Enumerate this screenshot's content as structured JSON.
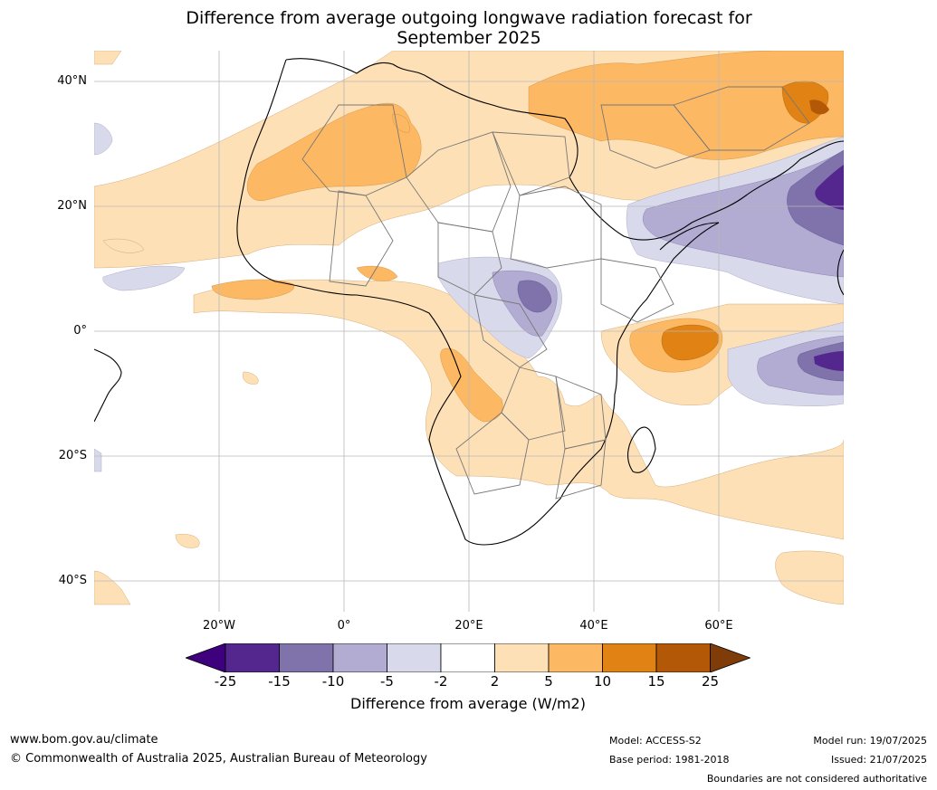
{
  "title_line1": "Difference from average outgoing longwave radiation forecast for",
  "title_line2": "September 2025",
  "lat_ticks": [
    "40°N",
    "20°N",
    "0°",
    "20°S",
    "40°S"
  ],
  "lon_ticks": [
    "20°W",
    "0°",
    "20°E",
    "40°E",
    "60°E"
  ],
  "colorbar": {
    "title": "Difference from average (W/m2)",
    "labels": [
      "-25",
      "-15",
      "-10",
      "-5",
      "-2",
      "2",
      "5",
      "10",
      "15",
      "25"
    ],
    "colors": [
      "#3f007d",
      "#54278f",
      "#8073ac",
      "#b2abd2",
      "#d8daeb",
      "#ffffff",
      "#fee0b6",
      "#fdb863",
      "#e08214",
      "#b35806",
      "#7f3b08"
    ]
  },
  "footer": {
    "website": "www.bom.gov.au/climate",
    "copyright": "© Commonwealth of Australia 2025, Australian Bureau of Meteorology",
    "model": "Model: ACCESS-S2",
    "base_period": "Base period: 1981-2018",
    "model_run": "Model run: 19/07/2025",
    "issued": "Issued: 21/07/2025",
    "disclaimer": "Boundaries are not considered authoritative"
  }
}
